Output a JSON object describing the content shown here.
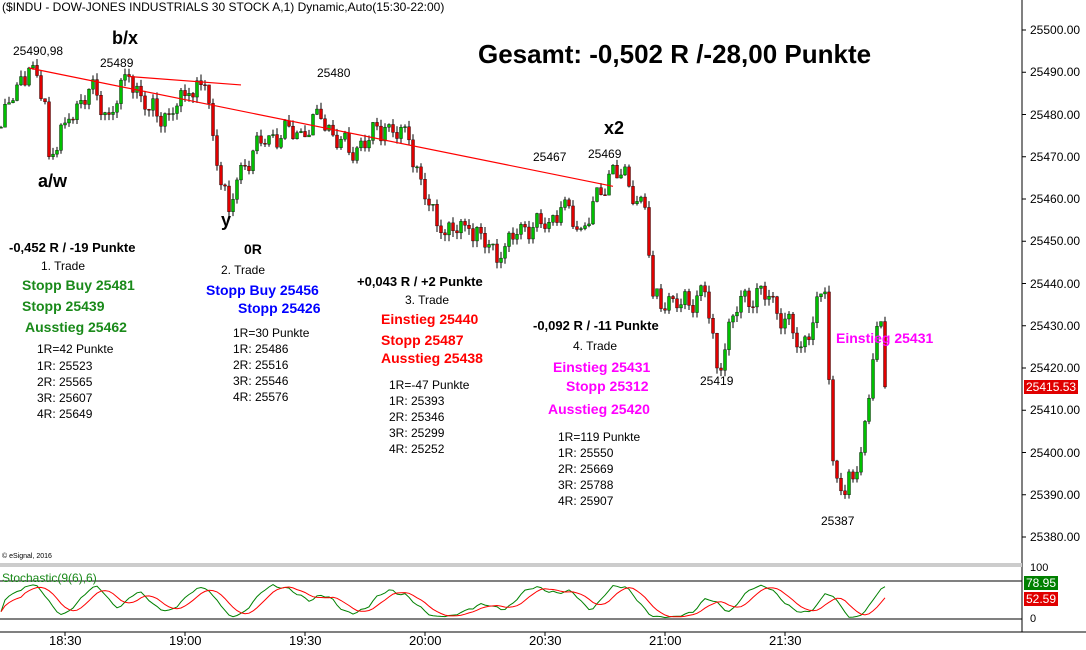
{
  "header": {
    "title": "($INDU - DOW-JONES INDUSTRIALS 30 STOCK A,1) Dynamic,Auto(15:30-22:00)",
    "summary": "Gesamt: -0,502 R /-28,00 Punkte"
  },
  "copyright": "© eSignal, 2016",
  "wave_labels": {
    "aw": "a/w",
    "bx": "b/x",
    "y": "y",
    "x2": "x2"
  },
  "price_labels": {
    "high1": "25490,98",
    "p25489": "25489",
    "p25480": "25480",
    "p25467": "25467",
    "p25469": "25469",
    "p25419": "25419",
    "p25387": "25387",
    "entry4": "Einstieg 25431"
  },
  "colors": {
    "up": "#00c000",
    "down": "#e00000",
    "trendline": "#ff0000",
    "trade1": "#1a8a1a",
    "trade2": "#0000ff",
    "trade3": "#ff0000",
    "trade4": "#ff00ff",
    "stoch_k": "#008000",
    "stoch_d": "#ff0000"
  },
  "trades": [
    {
      "result": "-0,452 R / -19 Punkte",
      "name": "1. Trade",
      "orders": [
        "Stopp Buy 25481",
        "Stopp 25439",
        "Ausstieg 25462"
      ],
      "risk": "1R=42 Punkte",
      "targets": [
        "1R: 25523",
        "2R: 25565",
        "3R: 25607",
        "4R: 25649"
      ]
    },
    {
      "result": "0R",
      "name": "2. Trade",
      "orders": [
        "Stopp Buy 25456",
        "Stopp 25426"
      ],
      "risk": "1R=30 Punkte",
      "targets": [
        "1R: 25486",
        "2R: 25516",
        "3R: 25546",
        "4R: 25576"
      ]
    },
    {
      "result": "+0,043 R / +2 Punkte",
      "name": "3. Trade",
      "orders": [
        "Einstieg 25440",
        "Stopp 25487",
        "Ausstieg 25438"
      ],
      "risk": "1R=-47 Punkte",
      "targets": [
        "1R: 25393",
        "2R: 25346",
        "3R: 25299",
        "4R: 25252"
      ]
    },
    {
      "result": "-0,092 R / -11 Punkte",
      "name": "4. Trade",
      "orders": [
        "Einstieg 25431",
        "Stopp 25312",
        "Ausstieg 25420"
      ],
      "risk": "1R=119 Punkte",
      "targets": [
        "1R: 25550",
        "2R: 25669",
        "3R: 25788",
        "4R: 25907"
      ]
    }
  ],
  "chart_data": {
    "type": "candlestick",
    "title": "($INDU - DOW-JONES INDUSTRIALS 30 STOCK A,1) Dynamic,Auto(15:30-22:00)",
    "interval": "1 minute",
    "ylim": [
      25375,
      25505
    ],
    "y_ticks": [
      "25500.00",
      "25490.00",
      "25480.00",
      "25470.00",
      "25460.00",
      "25450.00",
      "25440.00",
      "25430.00",
      "25420.00",
      "25410.00",
      "25400.00",
      "25390.00",
      "25380.00"
    ],
    "x_ticks": [
      "18:30",
      "19:00",
      "19:30",
      "20:00",
      "20:30",
      "21:00",
      "21:30"
    ],
    "last_price": "25415.53",
    "price_path": [
      [
        "18:14",
        25477
      ],
      [
        "18:18",
        25487
      ],
      [
        "18:21",
        25491
      ],
      [
        "18:25",
        25483
      ],
      [
        "18:26",
        25470
      ],
      [
        "18:30",
        25478
      ],
      [
        "18:36",
        25486
      ],
      [
        "18:41",
        25480
      ],
      [
        "18:46",
        25489
      ],
      [
        "18:51",
        25481
      ],
      [
        "18:56",
        25480
      ],
      [
        "19:01",
        25485
      ],
      [
        "19:05",
        25487
      ],
      [
        "19:07",
        25475
      ],
      [
        "19:11",
        25457
      ],
      [
        "19:14",
        25468
      ],
      [
        "19:21",
        25475
      ],
      [
        "19:29",
        25476
      ],
      [
        "19:34",
        25479
      ],
      [
        "19:41",
        25471
      ],
      [
        "19:50",
        25477
      ],
      [
        "19:56",
        25474
      ],
      [
        "20:00",
        25460
      ],
      [
        "20:04",
        25452
      ],
      [
        "20:11",
        25453
      ],
      [
        "20:19",
        25446
      ],
      [
        "20:24",
        25454
      ],
      [
        "20:30",
        25453
      ],
      [
        "20:34",
        25458
      ],
      [
        "20:39",
        25453
      ],
      [
        "20:44",
        25461
      ],
      [
        "20:47",
        25468
      ],
      [
        "20:51",
        25463
      ],
      [
        "20:55",
        25458
      ],
      [
        "20:57",
        25437
      ],
      [
        "21:04",
        25435
      ],
      [
        "21:10",
        25438
      ],
      [
        "21:13",
        25420
      ],
      [
        "21:19",
        25437
      ],
      [
        "21:26",
        25437
      ],
      [
        "21:34",
        25425
      ],
      [
        "21:40",
        25438
      ],
      [
        "21:42",
        25398
      ],
      [
        "21:45",
        25390
      ],
      [
        "21:49",
        25400
      ],
      [
        "21:52",
        25422
      ],
      [
        "21:54",
        25431
      ],
      [
        "21:55",
        25415.53
      ]
    ],
    "trendlines": [
      {
        "from": [
          "18:21",
          25491
        ],
        "to": [
          "20:47",
          25463
        ]
      },
      {
        "from": [
          "18:46",
          25489
        ],
        "to": [
          "19:14",
          25487
        ]
      }
    ],
    "indicator": {
      "name": "Stochastic(9(6),6)",
      "ylim": [
        0,
        100
      ],
      "levels": [
        0,
        100
      ],
      "level_labels": [
        "100",
        "0"
      ],
      "k_last": "78.95",
      "d_last": "52.59"
    }
  }
}
